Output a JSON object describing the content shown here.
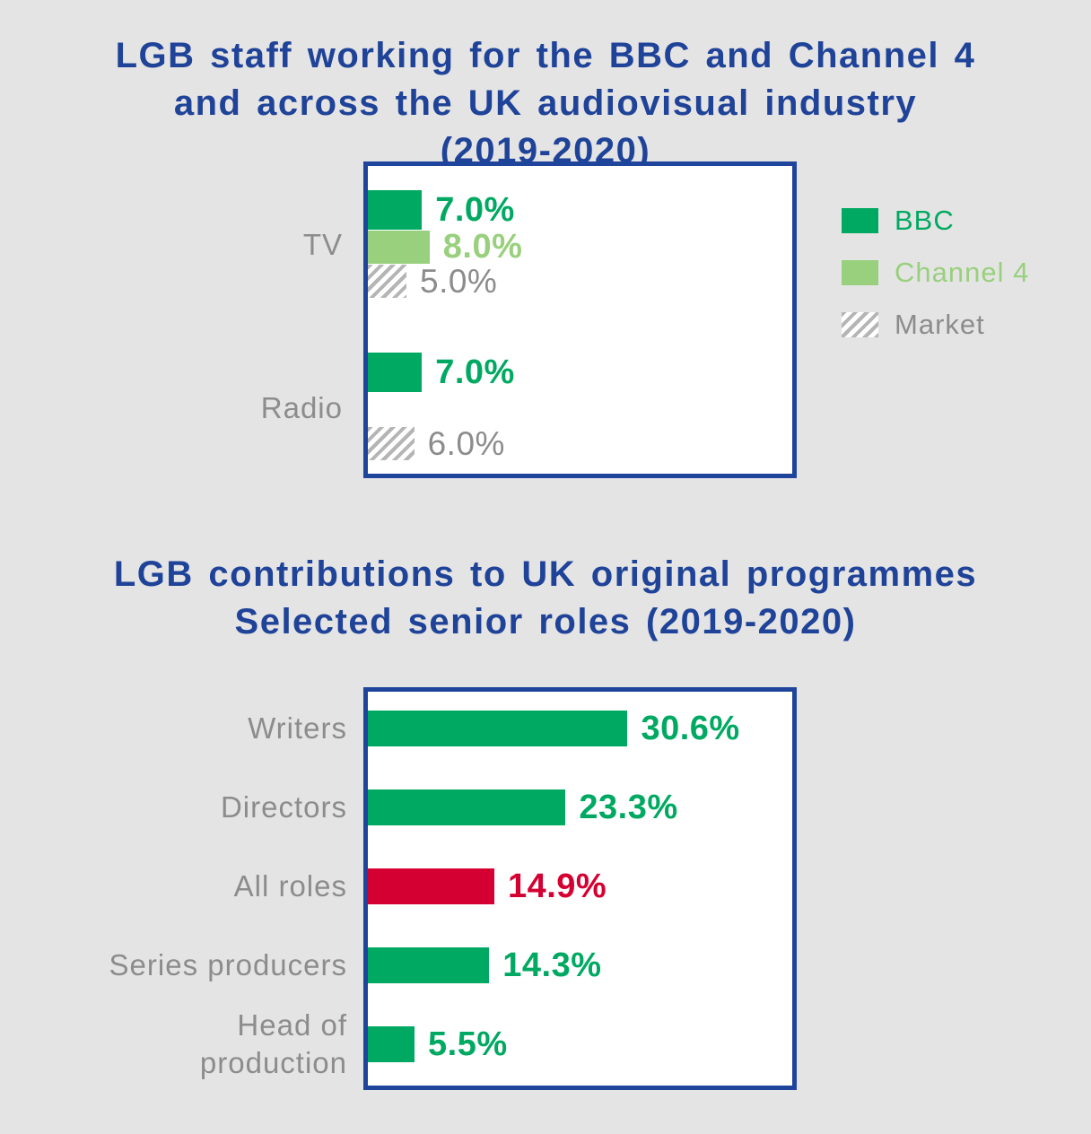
{
  "colors": {
    "background": "#E5E4E4",
    "navy": "#1F4398",
    "green": "#00A962",
    "light_green": "#98D07D",
    "red": "#D50032",
    "gray_text": "#8C8C8C",
    "hatch_gray": "#B5B5B5",
    "box_background": "#FFFFFF"
  },
  "chart_data": [
    {
      "type": "bar",
      "orientation": "horizontal",
      "title": "LGB staff working for the BBC and Channel 4\nand across the UK audiovisual industry\n(2019-2020)",
      "categories": [
        "TV",
        "Radio"
      ],
      "series": [
        {
          "name": "BBC",
          "color_key": "green",
          "values": [
            7.0,
            7.0
          ],
          "labels": [
            "7.0%",
            "7.0%"
          ]
        },
        {
          "name": "Channel 4",
          "color_key": "light_green",
          "values": [
            8.0,
            null
          ],
          "labels": [
            "8.0%",
            null
          ]
        },
        {
          "name": "Market",
          "color_key": "hatch",
          "values": [
            5.0,
            6.0
          ],
          "labels": [
            "5.0%",
            "6.0%"
          ]
        }
      ],
      "xlim": [
        0,
        55
      ],
      "grid": false,
      "legend": {
        "position": "right",
        "items": [
          {
            "label": "BBC",
            "color_key": "green"
          },
          {
            "label": "Channel 4",
            "color_key": "light_green"
          },
          {
            "label": "Market",
            "color_key": "hatch"
          }
        ]
      }
    },
    {
      "type": "bar",
      "orientation": "horizontal",
      "title": "LGB contributions to UK original programmes\nSelected senior roles (2019-2020)",
      "categories": [
        "Writers",
        "Directors",
        "All roles",
        "Series producers",
        "Head of\nproduction"
      ],
      "values": [
        30.6,
        23.3,
        14.9,
        14.3,
        5.5
      ],
      "labels": [
        "30.6%",
        "23.3%",
        "14.9%",
        "14.3%",
        "5.5%"
      ],
      "bar_colors": [
        "green",
        "green",
        "red",
        "green",
        "green"
      ],
      "xlim": [
        0,
        50
      ],
      "grid": false
    }
  ]
}
